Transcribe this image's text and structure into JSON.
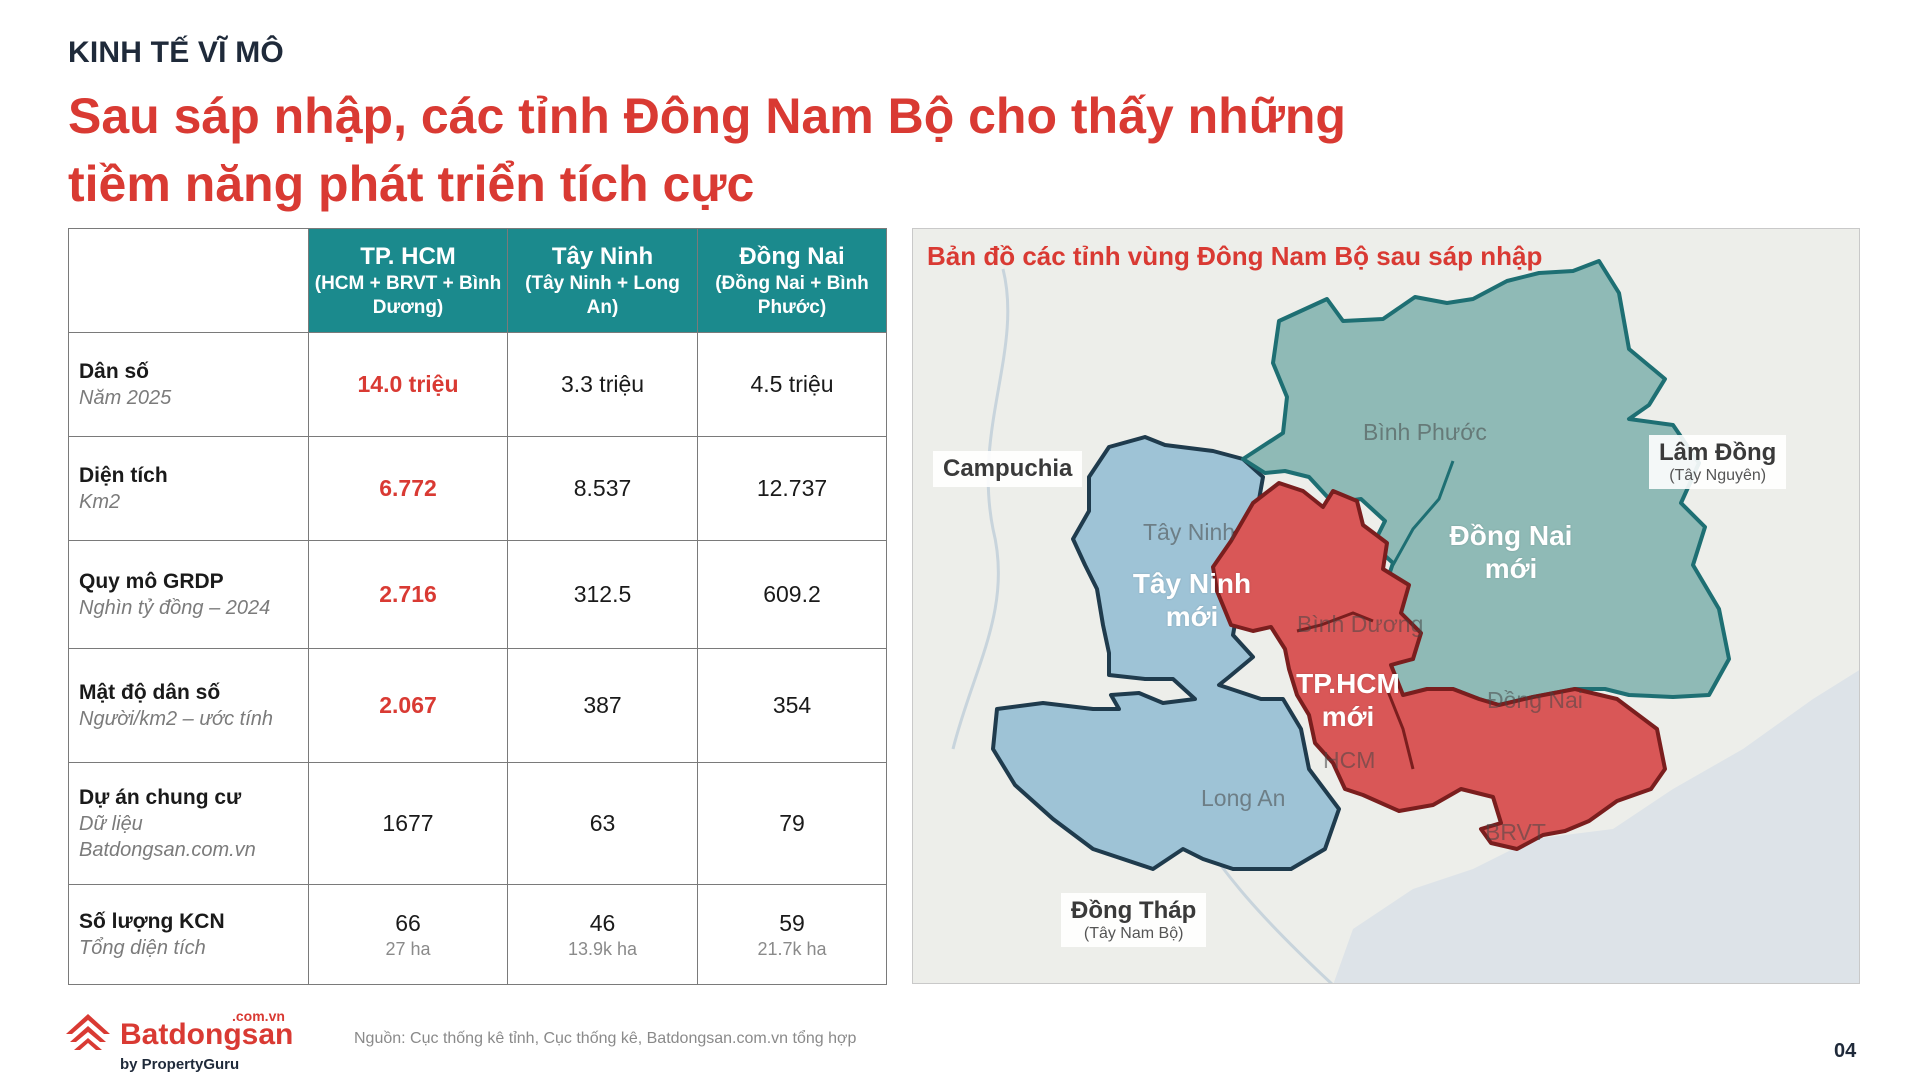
{
  "kicker": "KINH TẾ VĨ MÔ",
  "headline": "Sau sáp nhập, các tỉnh Đông Nam Bộ cho thấy những tiềm năng phát triển tích cực",
  "table": {
    "columns": [
      {
        "name": "TP. HCM",
        "sub": "(HCM + BRVT + Bình Dương)"
      },
      {
        "name": "Tây Ninh",
        "sub": "(Tây Ninh + Long An)"
      },
      {
        "name": "Đồng Nai",
        "sub": "(Đồng Nai + Bình Phước)"
      }
    ],
    "rows": [
      {
        "label": "Dân số",
        "sub": "Năm 2025",
        "values": [
          "14.0 triệu",
          "3.3 triệu",
          "4.5 triệu"
        ],
        "subvalues": [
          "",
          "",
          ""
        ]
      },
      {
        "label": "Diện tích",
        "sub": "Km2",
        "values": [
          "6.772",
          "8.537",
          "12.737"
        ],
        "subvalues": [
          "",
          "",
          ""
        ]
      },
      {
        "label": "Quy mô GRDP",
        "sub": "Nghìn tỷ đồng – 2024",
        "values": [
          "2.716",
          "312.5",
          "609.2"
        ],
        "subvalues": [
          "",
          "",
          ""
        ]
      },
      {
        "label": "Mật độ dân số",
        "sub": "Người/km2 – ước tính",
        "values": [
          "2.067",
          "387",
          "354"
        ],
        "subvalues": [
          "",
          "",
          ""
        ]
      },
      {
        "label": "Dự án chung cư",
        "sub": "Dữ liệu Batdongsan.com.vn",
        "values": [
          "1677",
          "63",
          "79"
        ],
        "subvalues": [
          "",
          "",
          ""
        ]
      },
      {
        "label": "Số lượng KCN",
        "sub": "Tổng diện tích",
        "values": [
          "66",
          "46",
          "59"
        ],
        "subvalues": [
          "27 ha",
          "13.9k ha",
          "21.7k ha"
        ]
      }
    ]
  },
  "map": {
    "title": "Bản đồ các tỉnh vùng Đông Nam Bộ sau sáp nhập",
    "chips": {
      "campuchia": "Campuchia",
      "lamdong": "Lâm Đồng",
      "lamdong_sub": "(Tây Nguyên)",
      "dongthap": "Đồng Tháp",
      "dongthap_sub": "(Tây Nam Bộ)"
    },
    "old_labels": {
      "binhphuoc": "Bình Phước",
      "tayninh": "Tây Ninh",
      "binhduong": "Bình Dương",
      "dongnai": "Đồng Nai",
      "hcm": "HCM",
      "longan": "Long An",
      "brvt": "BRVT"
    },
    "new_labels": {
      "tayninh_1": "Tây Ninh",
      "tayninh_2": "mới",
      "dongnai_1": "Đồng Nai",
      "dongnai_2": "mới",
      "hcm_1": "TP.HCM",
      "hcm_2": "mới"
    },
    "colors": {
      "hcm": "#d95757",
      "tayninh": "#9ec3d6",
      "dongnai": "#8fbab6",
      "outline": "#1e6f73"
    }
  },
  "footer": {
    "logo_com": ".com.vn",
    "logo_name": "Batdongsan",
    "logo_by": "by PropertyGuru",
    "source": "Nguồn: Cục thống kê tỉnh, Cục thống kê, Batdongsan.com.vn tổng hợp",
    "page": "04"
  }
}
